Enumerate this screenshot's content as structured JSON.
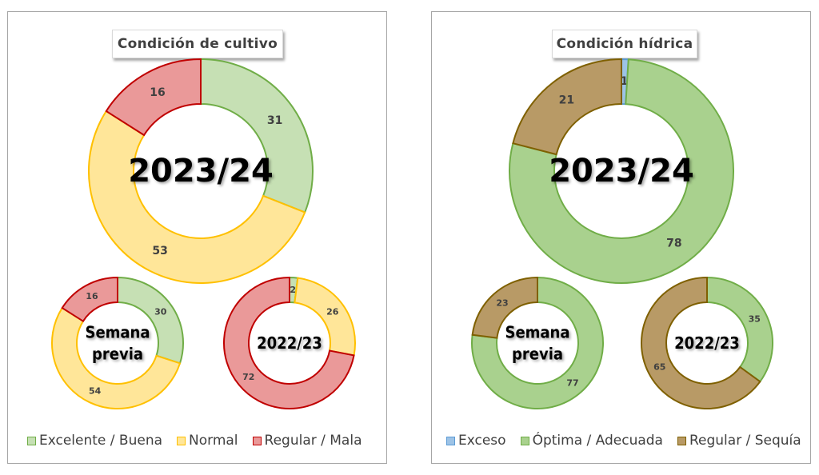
{
  "panels": [
    {
      "title": "Condición de cultivo",
      "legend": [
        {
          "label": "Excelente / Buena",
          "fill": "#c6e0b4",
          "stroke": "#70ad47"
        },
        {
          "label": "Normal",
          "fill": "#ffe699",
          "stroke": "#ffc000"
        },
        {
          "label": "Regular / Mala",
          "fill": "#ea9999",
          "stroke": "#c00000"
        }
      ]
    },
    {
      "title": "Condición hídrica",
      "legend": [
        {
          "label": "Exceso",
          "fill": "#9dc3e6",
          "stroke": "#5b9bd5"
        },
        {
          "label": "Óptima / Adecuada",
          "fill": "#a9d18e",
          "stroke": "#70ad47"
        },
        {
          "label": "Regular / Sequía",
          "fill": "#b89a66",
          "stroke": "#7f6000"
        }
      ]
    }
  ],
  "chart_data": [
    {
      "type": "pie",
      "title": "Condición de cultivo",
      "center_label": "2023/24",
      "series": [
        {
          "name": "Excelente / Buena",
          "value": 31
        },
        {
          "name": "Normal",
          "value": 53
        },
        {
          "name": "Regular / Mala",
          "value": 16
        }
      ]
    },
    {
      "type": "pie",
      "title": "Condición de cultivo",
      "center_label": "Semana previa",
      "series": [
        {
          "name": "Excelente / Buena",
          "value": 30
        },
        {
          "name": "Normal",
          "value": 54
        },
        {
          "name": "Regular / Mala",
          "value": 16
        }
      ]
    },
    {
      "type": "pie",
      "title": "Condición de cultivo",
      "center_label": "2022/23",
      "series": [
        {
          "name": "Excelente / Buena",
          "value": 2
        },
        {
          "name": "Normal",
          "value": 26
        },
        {
          "name": "Regular / Mala",
          "value": 72
        }
      ]
    },
    {
      "type": "pie",
      "title": "Condición hídrica",
      "center_label": "2023/24",
      "series": [
        {
          "name": "Exceso",
          "value": 1
        },
        {
          "name": "Óptima / Adecuada",
          "value": 78
        },
        {
          "name": "Regular / Sequía",
          "value": 21
        }
      ]
    },
    {
      "type": "pie",
      "title": "Condición hídrica",
      "center_label": "Semana previa",
      "series": [
        {
          "name": "Exceso",
          "value": 0
        },
        {
          "name": "Óptima / Adecuada",
          "value": 77
        },
        {
          "name": "Regular / Sequía",
          "value": 23
        }
      ]
    },
    {
      "type": "pie",
      "title": "Condición hídrica",
      "center_label": "2022/23",
      "series": [
        {
          "name": "Exceso",
          "value": 0
        },
        {
          "name": "Óptima / Adecuada",
          "value": 35
        },
        {
          "name": "Regular / Sequía",
          "value": 65
        }
      ]
    }
  ]
}
